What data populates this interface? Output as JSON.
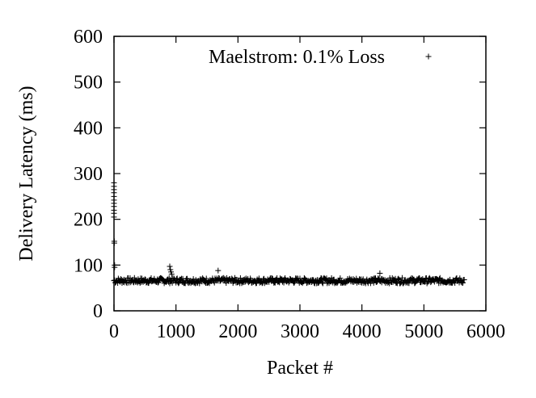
{
  "chart_data": {
    "type": "scatter",
    "title": "",
    "xlabel": "Packet #",
    "ylabel": "Delivery Latency (ms)",
    "xlim": [
      0,
      6000
    ],
    "ylim": [
      0,
      600
    ],
    "x_ticks": [
      0,
      1000,
      2000,
      3000,
      4000,
      5000,
      6000
    ],
    "y_ticks": [
      0,
      100,
      200,
      300,
      400,
      500,
      600
    ],
    "grid": false,
    "legend_position": "top-right",
    "marker": "plus",
    "series": [
      {
        "name": "Maelstrom: 0.1% Loss",
        "color": "#000000",
        "baseline_range": [
          60,
          72
        ],
        "baseline_x_range": [
          0,
          5650
        ],
        "baseline_step": 10,
        "outliers": [
          [
            0,
            280
          ],
          [
            0,
            272
          ],
          [
            0,
            265
          ],
          [
            0,
            258
          ],
          [
            0,
            250
          ],
          [
            0,
            242
          ],
          [
            0,
            235
          ],
          [
            0,
            228
          ],
          [
            0,
            220
          ],
          [
            0,
            213
          ],
          [
            0,
            205
          ],
          [
            5,
            152
          ],
          [
            5,
            148
          ],
          [
            10,
            100
          ],
          [
            10,
            95
          ],
          [
            900,
            97
          ],
          [
            910,
            90
          ],
          [
            920,
            85
          ],
          [
            930,
            80
          ],
          [
            1680,
            88
          ],
          [
            4290,
            82
          ]
        ]
      }
    ]
  }
}
